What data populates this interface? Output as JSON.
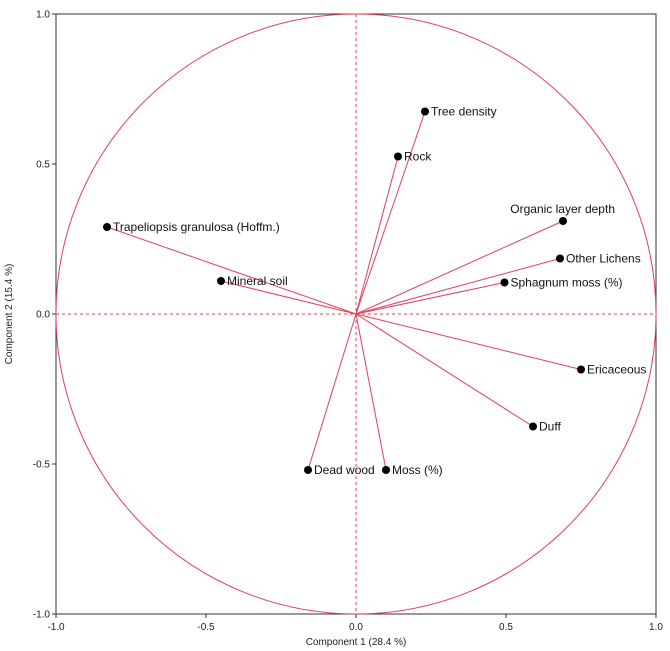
{
  "chart_data": {
    "type": "scatter",
    "subtype": "pca-loading-plot",
    "xlabel": "Component 1  (28.4 %)",
    "ylabel": "Component 2  (15.4 %)",
    "xlim": [
      -1.0,
      1.0
    ],
    "ylim": [
      -1.0,
      1.0
    ],
    "x_ticks": [
      "-1.0",
      "-0.5",
      "0.0",
      "0.5",
      "1.0"
    ],
    "y_ticks": [
      "-1.0",
      "-0.5",
      "0.0",
      "0.5",
      "1.0"
    ],
    "unit_circle": true,
    "reference_lines": "dashed at x=0 and y=0",
    "grid": false,
    "colors": {
      "accent": "#e0405a",
      "point": "#000000"
    },
    "points": [
      {
        "name": "Tree density",
        "x": 0.23,
        "y": 0.675
      },
      {
        "name": "Rock",
        "x": 0.14,
        "y": 0.525
      },
      {
        "name": "Organic layer depth",
        "x": 0.69,
        "y": 0.31
      },
      {
        "name": "Other Lichens",
        "x": 0.68,
        "y": 0.185
      },
      {
        "name": "Sphagnum moss (%)",
        "x": 0.495,
        "y": 0.105
      },
      {
        "name": "Trapeliopsis granulosa (Hoffm.)",
        "x": -0.83,
        "y": 0.29
      },
      {
        "name": "Mineral soil",
        "x": -0.45,
        "y": 0.11
      },
      {
        "name": "Ericaceous",
        "x": 0.75,
        "y": -0.185
      },
      {
        "name": "Duff",
        "x": 0.59,
        "y": -0.375
      },
      {
        "name": "Dead wood",
        "x": -0.16,
        "y": -0.52
      },
      {
        "name": "Moss (%)",
        "x": 0.1,
        "y": -0.52
      }
    ]
  }
}
